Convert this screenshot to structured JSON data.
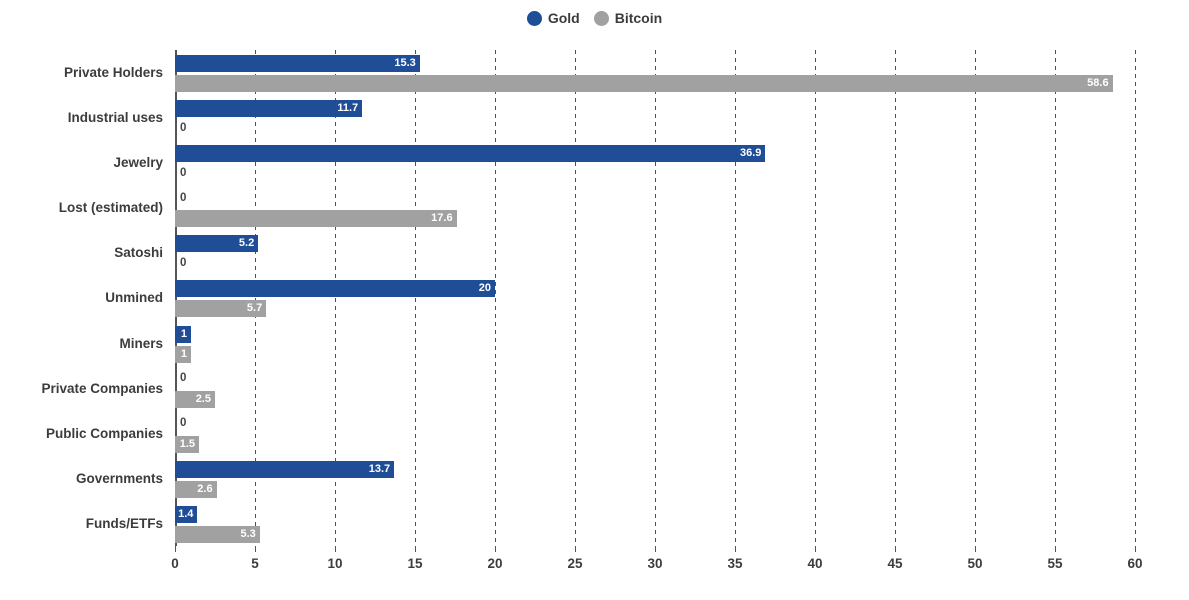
{
  "legend": {
    "items": [
      {
        "label": "Gold",
        "color": "#1f4e96"
      },
      {
        "label": "Bitcoin",
        "color": "#a1a1a1"
      }
    ]
  },
  "chart_data": {
    "type": "bar",
    "orientation": "horizontal",
    "title": "",
    "xlabel": "",
    "ylabel": "",
    "xlim": [
      0,
      60
    ],
    "xticks": [
      0,
      5,
      10,
      15,
      20,
      25,
      30,
      35,
      40,
      45,
      50,
      55,
      60
    ],
    "grid": "dashed-vertical",
    "legend_position": "top-center",
    "value_labels": "inside-end, white bold; zeros shown outside axis in dark text",
    "categories": [
      "Private Holders",
      "Industrial uses",
      "Jewelry",
      "Lost (estimated)",
      "Satoshi",
      "Unmined",
      "Miners",
      "Private Companies",
      "Public Companies",
      "Governments",
      "Funds/ETFs"
    ],
    "series": [
      {
        "name": "Gold",
        "color": "#1f4e96",
        "values": [
          15.3,
          11.7,
          36.9,
          0,
          5.2,
          20,
          1,
          0,
          0,
          13.7,
          1.4
        ]
      },
      {
        "name": "Bitcoin",
        "color": "#a1a1a1",
        "values": [
          58.6,
          0,
          0,
          17.6,
          0,
          5.7,
          1,
          2.5,
          1.5,
          2.6,
          5.3
        ]
      }
    ]
  }
}
